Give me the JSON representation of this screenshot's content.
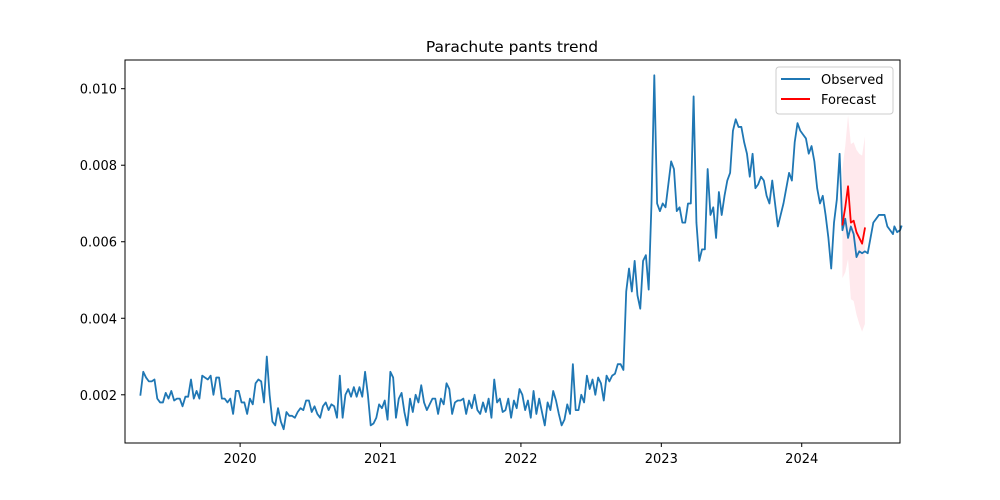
{
  "chart_data": {
    "type": "line",
    "title": "Parachute pants trend",
    "xlabel": "",
    "ylabel": "",
    "xlim": [
      2019.18,
      2024.7
    ],
    "ylim": [
      0.00074,
      0.01075
    ],
    "x_ticks": [
      2020,
      2021,
      2022,
      2023,
      2024
    ],
    "x_tick_labels": [
      "2020",
      "2021",
      "2022",
      "2023",
      "2024"
    ],
    "y_ticks": [
      0.002,
      0.004,
      0.006,
      0.008,
      0.01
    ],
    "y_tick_labels": [
      "0.002",
      "0.004",
      "0.006",
      "0.008",
      "0.010"
    ],
    "grid": false,
    "legend": {
      "placement": "top-right",
      "entries": [
        "Observed",
        "Forecast"
      ]
    },
    "series": [
      {
        "name": "Observed",
        "color": "#1f77b4",
        "points": [
          [
            2019.29,
            0.002
          ],
          [
            2019.31,
            0.0026
          ],
          [
            2019.33,
            0.00245
          ],
          [
            2019.35,
            0.00235
          ],
          [
            2019.37,
            0.00235
          ],
          [
            2019.39,
            0.0024
          ],
          [
            2019.41,
            0.0019
          ],
          [
            2019.43,
            0.0018
          ],
          [
            2019.45,
            0.0018
          ],
          [
            2019.47,
            0.00205
          ],
          [
            2019.49,
            0.0019
          ],
          [
            2019.51,
            0.0021
          ],
          [
            2019.53,
            0.00185
          ],
          [
            2019.55,
            0.0019
          ],
          [
            2019.57,
            0.0019
          ],
          [
            2019.59,
            0.0017
          ],
          [
            2019.61,
            0.00195
          ],
          [
            2019.63,
            0.00195
          ],
          [
            2019.65,
            0.0024
          ],
          [
            2019.67,
            0.0019
          ],
          [
            2019.69,
            0.0021
          ],
          [
            2019.71,
            0.0019
          ],
          [
            2019.73,
            0.0025
          ],
          [
            2019.75,
            0.00245
          ],
          [
            2019.77,
            0.0024
          ],
          [
            2019.79,
            0.0025
          ],
          [
            2019.81,
            0.002
          ],
          [
            2019.83,
            0.00245
          ],
          [
            2019.85,
            0.00245
          ],
          [
            2019.87,
            0.0019
          ],
          [
            2019.89,
            0.0019
          ],
          [
            2019.91,
            0.0018
          ],
          [
            2019.93,
            0.0019
          ],
          [
            2019.95,
            0.0015
          ],
          [
            2019.97,
            0.0021
          ],
          [
            2019.99,
            0.0021
          ],
          [
            2020.01,
            0.0018
          ],
          [
            2020.03,
            0.0018
          ],
          [
            2020.05,
            0.0015
          ],
          [
            2020.07,
            0.0019
          ],
          [
            2020.09,
            0.00175
          ],
          [
            2020.11,
            0.0023
          ],
          [
            2020.13,
            0.0024
          ],
          [
            2020.15,
            0.00235
          ],
          [
            2020.17,
            0.0018
          ],
          [
            2020.19,
            0.003
          ],
          [
            2020.21,
            0.002
          ],
          [
            2020.23,
            0.0013
          ],
          [
            2020.25,
            0.0012
          ],
          [
            2020.27,
            0.00165
          ],
          [
            2020.29,
            0.0013
          ],
          [
            2020.31,
            0.0011
          ],
          [
            2020.33,
            0.00155
          ],
          [
            2020.35,
            0.00145
          ],
          [
            2020.37,
            0.00145
          ],
          [
            2020.39,
            0.0014
          ],
          [
            2020.41,
            0.00155
          ],
          [
            2020.43,
            0.00165
          ],
          [
            2020.45,
            0.0016
          ],
          [
            2020.47,
            0.00185
          ],
          [
            2020.49,
            0.00185
          ],
          [
            2020.51,
            0.00155
          ],
          [
            2020.53,
            0.0017
          ],
          [
            2020.55,
            0.0015
          ],
          [
            2020.57,
            0.0014
          ],
          [
            2020.59,
            0.0017
          ],
          [
            2020.61,
            0.0018
          ],
          [
            2020.63,
            0.0016
          ],
          [
            2020.65,
            0.00175
          ],
          [
            2020.67,
            0.0017
          ],
          [
            2020.69,
            0.0014
          ],
          [
            2020.71,
            0.0025
          ],
          [
            2020.73,
            0.0014
          ],
          [
            2020.75,
            0.002
          ],
          [
            2020.77,
            0.00215
          ],
          [
            2020.79,
            0.00195
          ],
          [
            2020.81,
            0.0022
          ],
          [
            2020.83,
            0.00195
          ],
          [
            2020.85,
            0.0022
          ],
          [
            2020.87,
            0.00195
          ],
          [
            2020.89,
            0.0026
          ],
          [
            2020.91,
            0.002
          ],
          [
            2020.93,
            0.0012
          ],
          [
            2020.95,
            0.00125
          ],
          [
            2020.97,
            0.0014
          ],
          [
            2020.99,
            0.00175
          ],
          [
            2021.01,
            0.00165
          ],
          [
            2021.03,
            0.00185
          ],
          [
            2021.05,
            0.00135
          ],
          [
            2021.07,
            0.0026
          ],
          [
            2021.09,
            0.00245
          ],
          [
            2021.11,
            0.0014
          ],
          [
            2021.13,
            0.0019
          ],
          [
            2021.15,
            0.00205
          ],
          [
            2021.17,
            0.00155
          ],
          [
            2021.19,
            0.0012
          ],
          [
            2021.21,
            0.0019
          ],
          [
            2021.23,
            0.00155
          ],
          [
            2021.25,
            0.002
          ],
          [
            2021.27,
            0.0018
          ],
          [
            2021.29,
            0.00225
          ],
          [
            2021.31,
            0.0018
          ],
          [
            2021.33,
            0.0016
          ],
          [
            2021.35,
            0.00175
          ],
          [
            2021.37,
            0.0019
          ],
          [
            2021.39,
            0.0019
          ],
          [
            2021.41,
            0.0015
          ],
          [
            2021.43,
            0.0019
          ],
          [
            2021.45,
            0.00175
          ],
          [
            2021.47,
            0.0023
          ],
          [
            2021.49,
            0.00215
          ],
          [
            2021.51,
            0.0015
          ],
          [
            2021.53,
            0.0018
          ],
          [
            2021.55,
            0.00185
          ],
          [
            2021.57,
            0.00185
          ],
          [
            2021.59,
            0.0019
          ],
          [
            2021.61,
            0.0015
          ],
          [
            2021.63,
            0.00185
          ],
          [
            2021.65,
            0.00165
          ],
          [
            2021.67,
            0.002
          ],
          [
            2021.69,
            0.0016
          ],
          [
            2021.71,
            0.0015
          ],
          [
            2021.73,
            0.0018
          ],
          [
            2021.75,
            0.00155
          ],
          [
            2021.77,
            0.0019
          ],
          [
            2021.79,
            0.0014
          ],
          [
            2021.81,
            0.0024
          ],
          [
            2021.83,
            0.0018
          ],
          [
            2021.85,
            0.0019
          ],
          [
            2021.87,
            0.00155
          ],
          [
            2021.89,
            0.0016
          ],
          [
            2021.91,
            0.0019
          ],
          [
            2021.93,
            0.0014
          ],
          [
            2021.95,
            0.00185
          ],
          [
            2021.97,
            0.00165
          ],
          [
            2021.99,
            0.00215
          ],
          [
            2022.01,
            0.002
          ],
          [
            2022.03,
            0.0016
          ],
          [
            2022.05,
            0.00185
          ],
          [
            2022.07,
            0.0014
          ],
          [
            2022.09,
            0.0021
          ],
          [
            2022.11,
            0.0015
          ],
          [
            2022.13,
            0.0019
          ],
          [
            2022.15,
            0.00155
          ],
          [
            2022.17,
            0.0012
          ],
          [
            2022.19,
            0.0018
          ],
          [
            2022.21,
            0.0016
          ],
          [
            2022.23,
            0.0021
          ],
          [
            2022.25,
            0.00185
          ],
          [
            2022.27,
            0.0015
          ],
          [
            2022.29,
            0.0012
          ],
          [
            2022.31,
            0.00135
          ],
          [
            2022.33,
            0.00175
          ],
          [
            2022.35,
            0.0015
          ],
          [
            2022.37,
            0.0028
          ],
          [
            2022.39,
            0.0016
          ],
          [
            2022.41,
            0.0016
          ],
          [
            2022.43,
            0.002
          ],
          [
            2022.45,
            0.0018
          ],
          [
            2022.47,
            0.0025
          ],
          [
            2022.49,
            0.00215
          ],
          [
            2022.51,
            0.0024
          ],
          [
            2022.53,
            0.002
          ],
          [
            2022.55,
            0.00245
          ],
          [
            2022.57,
            0.0023
          ],
          [
            2022.59,
            0.00185
          ],
          [
            2022.61,
            0.0025
          ],
          [
            2022.63,
            0.00235
          ],
          [
            2022.65,
            0.0025
          ],
          [
            2022.67,
            0.00255
          ],
          [
            2022.69,
            0.0028
          ],
          [
            2022.71,
            0.0028
          ],
          [
            2022.73,
            0.00265
          ],
          [
            2022.75,
            0.0047
          ],
          [
            2022.77,
            0.0053
          ],
          [
            2022.79,
            0.0047
          ],
          [
            2022.81,
            0.0055
          ],
          [
            2022.83,
            0.0046
          ],
          [
            2022.85,
            0.00425
          ],
          [
            2022.87,
            0.0055
          ],
          [
            2022.89,
            0.00565
          ],
          [
            2022.91,
            0.00475
          ],
          [
            2022.93,
            0.007
          ],
          [
            2022.95,
            0.01035
          ],
          [
            2022.97,
            0.007
          ],
          [
            2022.99,
            0.0068
          ],
          [
            2023.01,
            0.007
          ],
          [
            2023.03,
            0.0069
          ],
          [
            2023.05,
            0.0075
          ],
          [
            2023.07,
            0.0081
          ],
          [
            2023.09,
            0.0079
          ],
          [
            2023.11,
            0.0068
          ],
          [
            2023.13,
            0.0069
          ],
          [
            2023.15,
            0.0065
          ],
          [
            2023.17,
            0.0065
          ],
          [
            2023.19,
            0.007
          ],
          [
            2023.21,
            0.007
          ],
          [
            2023.23,
            0.0098
          ],
          [
            2023.25,
            0.0065
          ],
          [
            2023.27,
            0.0055
          ],
          [
            2023.29,
            0.0058
          ],
          [
            2023.31,
            0.0058
          ],
          [
            2023.33,
            0.0079
          ],
          [
            2023.35,
            0.0067
          ],
          [
            2023.37,
            0.0069
          ],
          [
            2023.39,
            0.0061
          ],
          [
            2023.41,
            0.0073
          ],
          [
            2023.43,
            0.0067
          ],
          [
            2023.45,
            0.0072
          ],
          [
            2023.47,
            0.0076
          ],
          [
            2023.49,
            0.0078
          ],
          [
            2023.51,
            0.0089
          ],
          [
            2023.53,
            0.0092
          ],
          [
            2023.55,
            0.009
          ],
          [
            2023.57,
            0.009
          ],
          [
            2023.59,
            0.0086
          ],
          [
            2023.61,
            0.0083
          ],
          [
            2023.63,
            0.0077
          ],
          [
            2023.65,
            0.0083
          ],
          [
            2023.67,
            0.0074
          ],
          [
            2023.69,
            0.0075
          ],
          [
            2023.71,
            0.0077
          ],
          [
            2023.73,
            0.0076
          ],
          [
            2023.75,
            0.0072
          ],
          [
            2023.77,
            0.007
          ],
          [
            2023.79,
            0.0076
          ],
          [
            2023.81,
            0.007
          ],
          [
            2023.83,
            0.0064
          ],
          [
            2023.85,
            0.0067
          ],
          [
            2023.87,
            0.007
          ],
          [
            2023.89,
            0.0074
          ],
          [
            2023.91,
            0.0078
          ],
          [
            2023.93,
            0.0076
          ],
          [
            2023.95,
            0.0086
          ],
          [
            2023.97,
            0.0091
          ],
          [
            2023.99,
            0.0089
          ],
          [
            2024.01,
            0.0088
          ],
          [
            2024.03,
            0.0087
          ],
          [
            2024.05,
            0.0083
          ],
          [
            2024.07,
            0.0085
          ],
          [
            2024.09,
            0.0081
          ],
          [
            2024.11,
            0.0074
          ],
          [
            2024.13,
            0.007
          ],
          [
            2024.15,
            0.0072
          ],
          [
            2024.17,
            0.0067
          ],
          [
            2024.19,
            0.0061
          ],
          [
            2024.21,
            0.0053
          ],
          [
            2024.23,
            0.0065
          ],
          [
            2024.25,
            0.0071
          ],
          [
            2024.27,
            0.0083
          ],
          [
            2024.29,
            0.0063
          ],
          [
            2024.31,
            0.0066
          ],
          [
            2024.33,
            0.0061
          ],
          [
            2024.35,
            0.0064
          ],
          [
            2024.37,
            0.0062
          ],
          [
            2024.39,
            0.0056
          ],
          [
            2024.41,
            0.00575
          ],
          [
            2024.43,
            0.0057
          ],
          [
            2024.45,
            0.00575
          ],
          [
            2024.47,
            0.0057
          ],
          [
            2024.49,
            0.0061
          ],
          [
            2024.51,
            0.0065
          ],
          [
            2024.53,
            0.0066
          ],
          [
            2024.55,
            0.0067
          ],
          [
            2024.57,
            0.0067
          ],
          [
            2024.59,
            0.0067
          ],
          [
            2024.61,
            0.0064
          ],
          [
            2024.63,
            0.0063
          ],
          [
            2024.65,
            0.0062
          ],
          [
            2024.66,
            0.0064
          ],
          [
            2024.68,
            0.00625
          ],
          [
            2024.7,
            0.0063
          ],
          [
            2024.71,
            0.0064
          ]
        ]
      },
      {
        "name": "Forecast",
        "color": "#ff0000",
        "band_color": "#ffc0cb",
        "points": [
          [
            2024.29,
            0.00645
          ],
          [
            2024.31,
            0.0069
          ],
          [
            2024.33,
            0.00745
          ],
          [
            2024.35,
            0.0065
          ],
          [
            2024.37,
            0.00655
          ],
          [
            2024.39,
            0.00625
          ],
          [
            2024.41,
            0.0061
          ],
          [
            2024.43,
            0.00595
          ],
          [
            2024.45,
            0.00635
          ]
        ],
        "upper": [
          0.0079,
          0.0085,
          0.0093,
          0.00855,
          0.0086,
          0.0084,
          0.0083,
          0.00825,
          0.00875
        ],
        "lower": [
          0.00505,
          0.0052,
          0.00555,
          0.0045,
          0.00445,
          0.0041,
          0.00385,
          0.00365,
          0.00385
        ]
      }
    ]
  }
}
